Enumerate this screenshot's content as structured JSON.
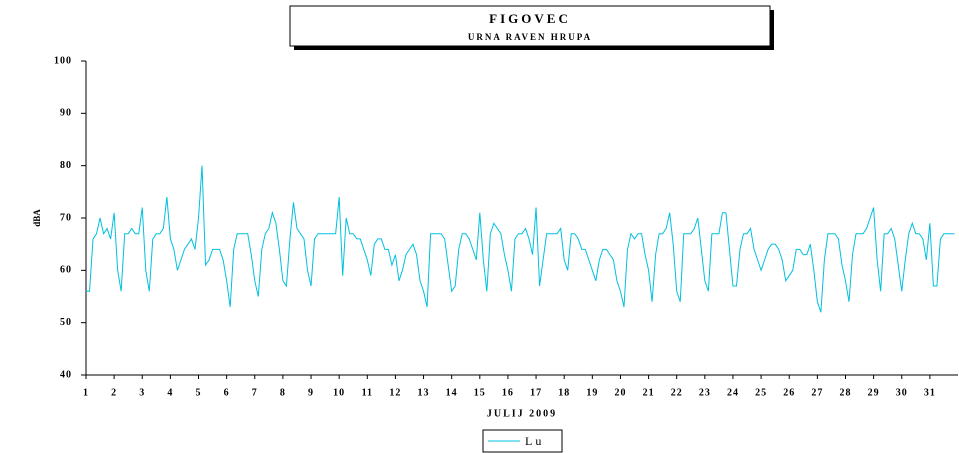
{
  "chart_data": {
    "type": "line",
    "title": "FIGOVEC",
    "subtitle": "URNA RAVEN HRUPA",
    "x_label": "JULIJ 2009",
    "y_label": "dBA",
    "xlim": [
      1,
      32
    ],
    "xticks": [
      1,
      2,
      3,
      4,
      5,
      6,
      7,
      8,
      9,
      10,
      11,
      12,
      13,
      14,
      15,
      16,
      17,
      18,
      19,
      20,
      21,
      22,
      23,
      24,
      25,
      26,
      27,
      28,
      29,
      30,
      31
    ],
    "ylim": [
      40,
      100
    ],
    "yticks": [
      40,
      50,
      60,
      70,
      80,
      90,
      100
    ],
    "grid": false,
    "legend": "bottom",
    "x": [
      1,
      1.125,
      1.25,
      1.375,
      1.5,
      1.625,
      1.75,
      1.875,
      2,
      2.125,
      2.25,
      2.375,
      2.5,
      2.625,
      2.75,
      2.875,
      3,
      3.125,
      3.25,
      3.375,
      3.5,
      3.625,
      3.75,
      3.875,
      4,
      4.125,
      4.25,
      4.375,
      4.5,
      4.625,
      4.75,
      4.875,
      5,
      5.125,
      5.25,
      5.375,
      5.5,
      5.625,
      5.75,
      5.875,
      6,
      6.125,
      6.25,
      6.375,
      6.5,
      6.625,
      6.75,
      6.875,
      7,
      7.125,
      7.25,
      7.375,
      7.5,
      7.625,
      7.75,
      7.875,
      8,
      8.125,
      8.25,
      8.375,
      8.5,
      8.625,
      8.75,
      8.875,
      9,
      9.125,
      9.25,
      9.375,
      9.5,
      9.625,
      9.75,
      9.875,
      10,
      10.125,
      10.25,
      10.375,
      10.5,
      10.625,
      10.75,
      10.875,
      11,
      11.125,
      11.25,
      11.375,
      11.5,
      11.625,
      11.75,
      11.875,
      12,
      12.125,
      12.25,
      12.375,
      12.5,
      12.625,
      12.75,
      12.875,
      13,
      13.125,
      13.25,
      13.375,
      13.5,
      13.625,
      13.75,
      13.875,
      14,
      14.125,
      14.25,
      14.375,
      14.5,
      14.625,
      14.75,
      14.875,
      15,
      15.125,
      15.25,
      15.375,
      15.5,
      15.625,
      15.75,
      15.875,
      16,
      16.125,
      16.25,
      16.375,
      16.5,
      16.625,
      16.75,
      16.875,
      17,
      17.125,
      17.25,
      17.375,
      17.5,
      17.625,
      17.75,
      17.875,
      18,
      18.125,
      18.25,
      18.375,
      18.5,
      18.625,
      18.75,
      18.875,
      19,
      19.125,
      19.25,
      19.375,
      19.5,
      19.625,
      19.75,
      19.875,
      20,
      20.125,
      20.25,
      20.375,
      20.5,
      20.625,
      20.75,
      20.875,
      21,
      21.125,
      21.25,
      21.375,
      21.5,
      21.625,
      21.75,
      21.875,
      22,
      22.125,
      22.25,
      22.375,
      22.5,
      22.625,
      22.75,
      22.875,
      23,
      23.125,
      23.25,
      23.375,
      23.5,
      23.625,
      23.75,
      23.875,
      24,
      24.125,
      24.25,
      24.375,
      24.5,
      24.625,
      24.75,
      24.875,
      25,
      25.125,
      25.25,
      25.375,
      25.5,
      25.625,
      25.75,
      25.875,
      26,
      26.125,
      26.25,
      26.375,
      26.5,
      26.625,
      26.75,
      26.875,
      27,
      27.125,
      27.25,
      27.375,
      27.5,
      27.625,
      27.75,
      27.875,
      28,
      28.125,
      28.25,
      28.375,
      28.5,
      28.625,
      28.75,
      28.875,
      29,
      29.125,
      29.25,
      29.375,
      29.5,
      29.625,
      29.75,
      29.875,
      30,
      30.125,
      30.25,
      30.375,
      30.5,
      30.625,
      30.75,
      30.875,
      31,
      31.125,
      31.25,
      31.375,
      31.5,
      31.625,
      31.75,
      31.875
    ],
    "series": [
      {
        "name": "Lu",
        "color": "#00c0e0",
        "values": [
          56,
          56,
          66,
          67,
          70,
          67,
          68,
          66,
          71,
          60,
          56,
          67,
          67,
          68,
          67,
          67,
          72,
          60,
          56,
          66,
          67,
          67,
          68,
          74,
          66,
          64,
          60,
          62,
          64,
          65,
          66,
          64,
          70,
          80,
          61,
          62,
          64,
          64,
          64,
          62,
          58,
          53,
          64,
          67,
          67,
          67,
          67,
          63,
          58,
          55,
          64,
          67,
          68,
          71,
          69,
          64,
          58,
          57,
          66,
          73,
          68,
          67,
          66,
          60,
          57,
          66,
          67,
          67,
          67,
          67,
          67,
          67,
          74,
          59,
          70,
          67,
          67,
          66,
          66,
          64,
          62,
          59,
          65,
          66,
          66,
          64,
          64,
          61,
          63,
          58,
          60,
          63,
          64,
          65,
          63,
          58,
          56,
          53,
          67,
          67,
          67,
          67,
          66,
          61,
          56,
          57,
          64,
          67,
          67,
          66,
          64,
          62,
          71,
          62,
          56,
          67,
          69,
          68,
          67,
          63,
          60,
          56,
          66,
          67,
          67,
          68,
          66,
          63,
          72,
          57,
          62,
          67,
          67,
          67,
          67,
          68,
          62,
          60,
          67,
          67,
          66,
          64,
          64,
          62,
          60,
          58,
          62,
          64,
          64,
          63,
          62,
          58,
          56,
          53,
          64,
          67,
          66,
          67,
          67,
          63,
          60,
          54,
          63,
          67,
          67,
          68,
          71,
          65,
          56,
          54,
          67,
          67,
          67,
          68,
          70,
          64,
          58,
          56,
          67,
          67,
          67,
          71,
          71,
          64,
          57,
          57,
          64,
          67,
          67,
          68,
          64,
          62,
          60,
          62,
          64,
          65,
          65,
          64,
          62,
          58,
          59,
          60,
          64,
          64,
          63,
          63,
          65,
          60,
          54,
          52,
          62,
          67,
          67,
          67,
          66,
          61,
          58,
          54,
          63,
          67,
          67,
          67,
          68,
          70,
          72,
          62,
          56,
          67,
          67,
          68,
          66,
          61,
          56,
          62,
          67,
          69,
          67,
          67,
          66,
          62,
          69,
          57,
          57,
          66,
          67,
          67,
          67,
          67
        ]
      }
    ]
  }
}
